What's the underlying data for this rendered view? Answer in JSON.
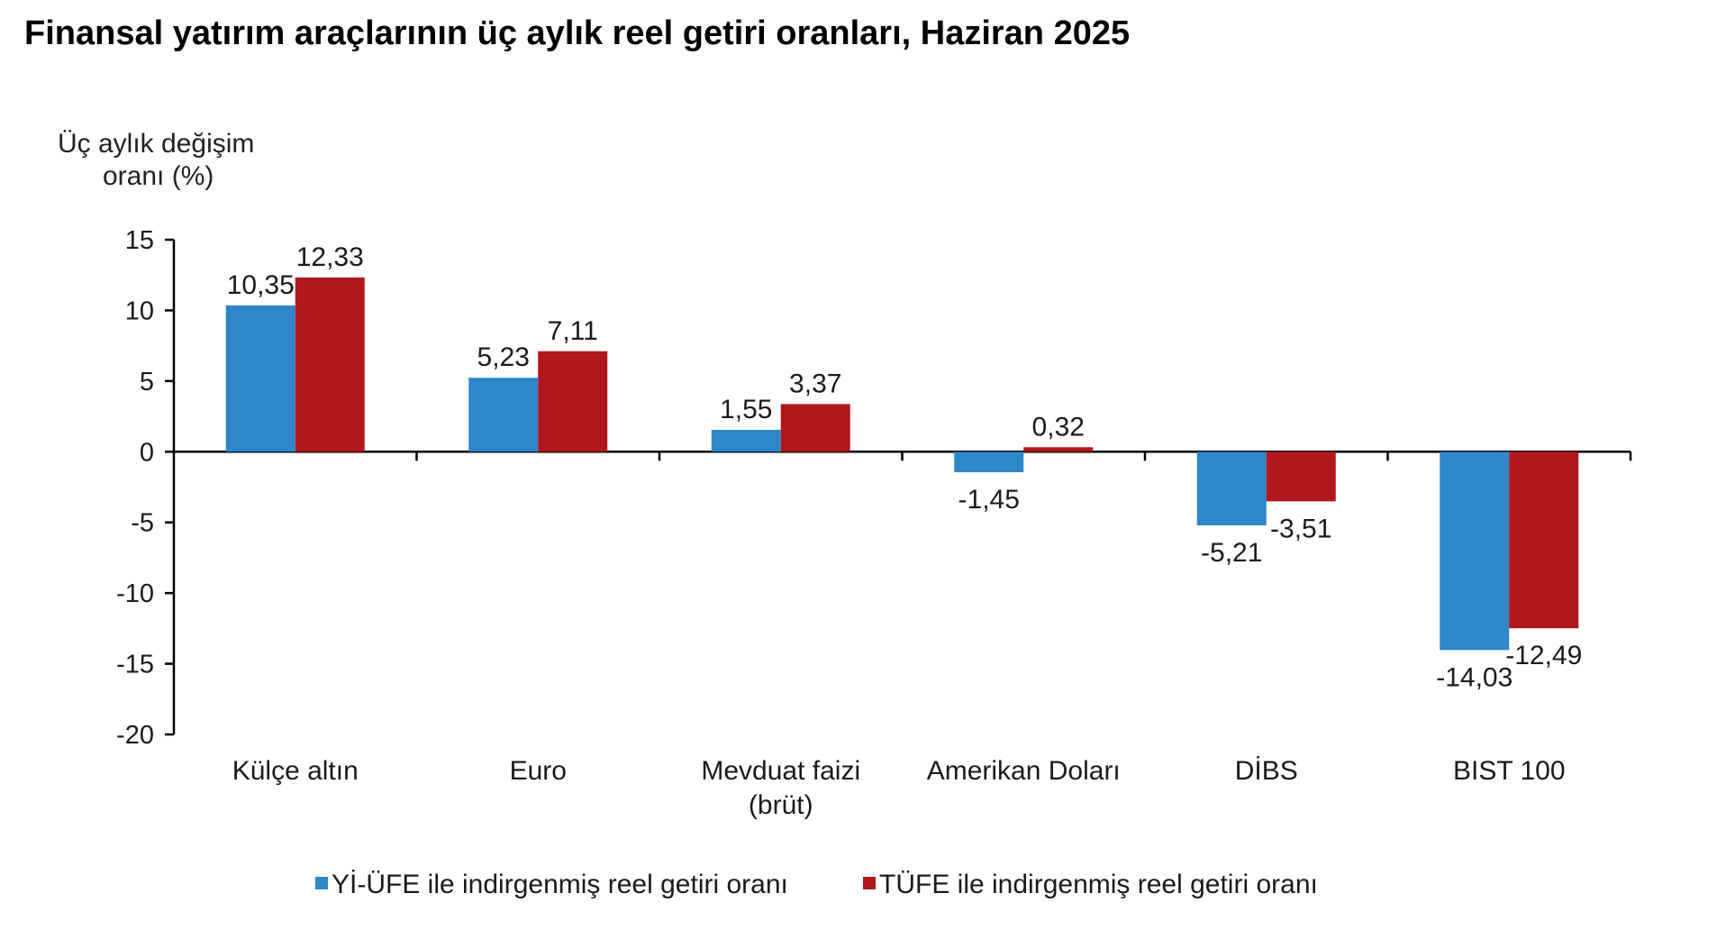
{
  "chart_data": {
    "type": "bar",
    "title": "Finansal yatırım araçlarının üç aylık reel getiri oranları, Haziran 2025",
    "ylabel_lines": [
      "Üç aylık değişim",
      "oranı (%)"
    ],
    "xlabel": "",
    "ylim": [
      -20,
      15
    ],
    "yticks": [
      15,
      10,
      5,
      0,
      -5,
      -10,
      -15,
      -20
    ],
    "categories": [
      [
        "Külçe altın"
      ],
      [
        "Euro"
      ],
      [
        "Mevduat faizi",
        "(brüt)"
      ],
      [
        "Amerikan Doları"
      ],
      [
        "DİBS"
      ],
      [
        "BIST 100"
      ]
    ],
    "series": [
      {
        "name": "Yİ-ÜFE ile indirgenmiş reel getiri oranı",
        "color": "#2f86c9",
        "values": [
          10.35,
          5.23,
          1.55,
          -1.45,
          -5.21,
          -14.03
        ],
        "labels": [
          "10,35",
          "5,23",
          "1,55",
          "-1,45",
          "-5,21",
          "-14,03"
        ]
      },
      {
        "name": "TÜFE ile indirgenmiş reel getiri oranı",
        "color": "#b0171b",
        "values": [
          12.33,
          7.11,
          3.37,
          0.32,
          -3.51,
          -12.49
        ],
        "labels": [
          "12,33",
          "7,11",
          "3,37",
          "0,32",
          "-3,51",
          "-12,49"
        ]
      }
    ],
    "legend_position": "bottom-center",
    "grid": false
  }
}
